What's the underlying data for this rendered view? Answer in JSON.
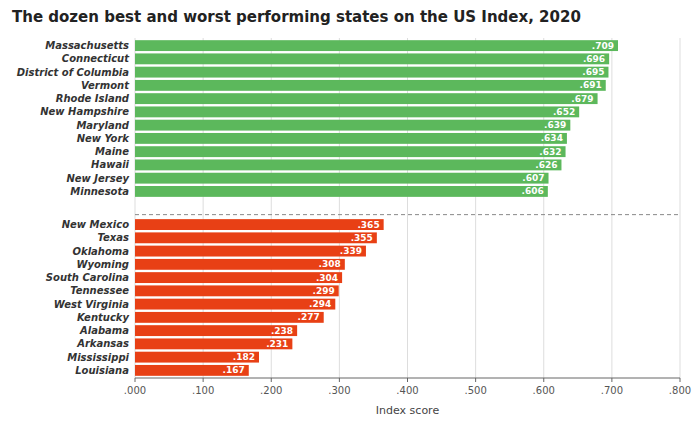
{
  "chart_data": {
    "type": "bar",
    "orientation": "horizontal",
    "title": "The dozen best and worst performing states on the US Index, 2020",
    "xlabel": "Index score",
    "categories": [
      "Massachusetts",
      "Connecticut",
      "District of Columbia",
      "Vermont",
      "Rhode Island",
      "New Hampshire",
      "Maryland",
      "New York",
      "Maine",
      "Hawaii",
      "New Jersey",
      "Minnesota",
      "New Mexico",
      "Texas",
      "Oklahoma",
      "Wyoming",
      "South Carolina",
      "Tennessee",
      "West Virginia",
      "Kentucky",
      "Alabama",
      "Arkansas",
      "Mississippi",
      "Louisiana"
    ],
    "values": [
      0.709,
      0.696,
      0.695,
      0.691,
      0.679,
      0.652,
      0.639,
      0.634,
      0.632,
      0.626,
      0.607,
      0.606,
      0.365,
      0.355,
      0.339,
      0.308,
      0.304,
      0.299,
      0.294,
      0.277,
      0.238,
      0.231,
      0.182,
      0.167
    ],
    "value_labels": [
      ".709",
      ".696",
      ".695",
      ".691",
      ".679",
      ".652",
      ".639",
      ".634",
      ".632",
      ".626",
      ".607",
      ".606",
      ".365",
      ".355",
      ".339",
      ".308",
      ".304",
      ".299",
      ".294",
      ".277",
      ".238",
      ".231",
      ".182",
      ".167"
    ],
    "data_labels": true,
    "colors": [
      "#5cb85c",
      "#5cb85c",
      "#5cb85c",
      "#5cb85c",
      "#5cb85c",
      "#5cb85c",
      "#5cb85c",
      "#5cb85c",
      "#5cb85c",
      "#5cb85c",
      "#5cb85c",
      "#5cb85c",
      "#e84015",
      "#e84015",
      "#e84015",
      "#e84015",
      "#e84015",
      "#e84015",
      "#e84015",
      "#e84015",
      "#e84015",
      "#e84015",
      "#e84015",
      "#e84015"
    ],
    "xlim": [
      0.0,
      0.8
    ],
    "xticks": [
      {
        "value": 0.0,
        "label": ".000"
      },
      {
        "value": 0.1,
        "label": ".100"
      },
      {
        "value": 0.2,
        "label": ".200"
      },
      {
        "value": 0.3,
        "label": ".300"
      },
      {
        "value": 0.4,
        "label": ".400"
      },
      {
        "value": 0.5,
        "label": ".500"
      },
      {
        "value": 0.6,
        "label": ".600"
      },
      {
        "value": 0.7,
        "label": ".700"
      },
      {
        "value": 0.8,
        "label": ".800"
      }
    ],
    "grid": true
  }
}
